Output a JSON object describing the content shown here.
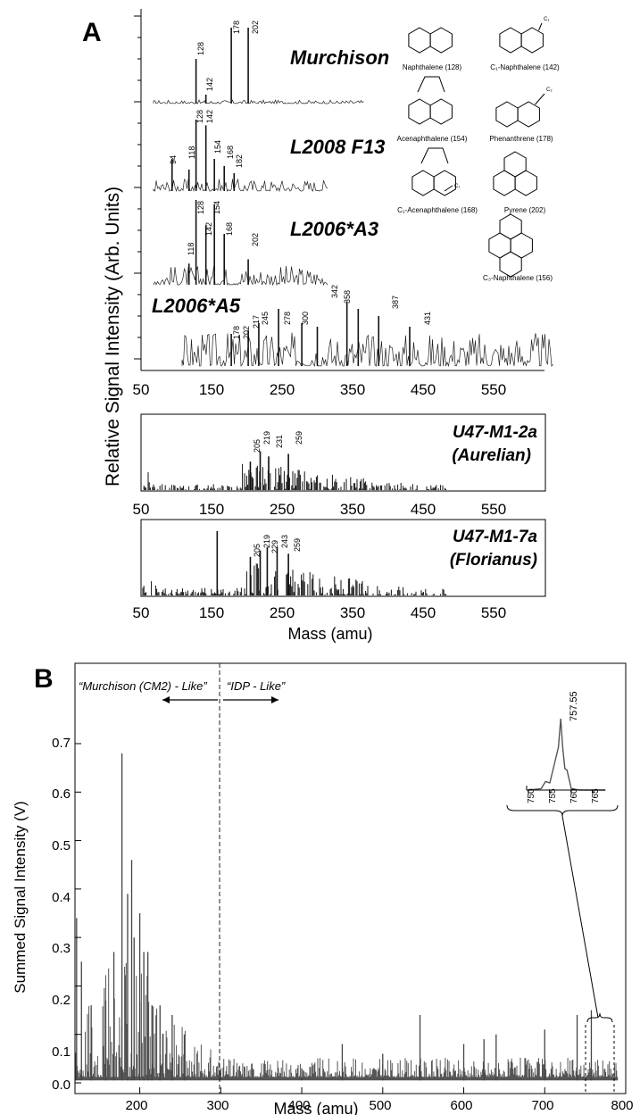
{
  "panel_a": {
    "letter": "A",
    "ylabel": "Relative Signal Intensity (Arb. Units)",
    "xlabel": "Mass (amu)",
    "xticks": [
      "50",
      "150",
      "250",
      "350",
      "450",
      "550"
    ],
    "spectra": [
      {
        "name": "Murchison",
        "peaks": [
          "128",
          "142",
          "178",
          "202"
        ]
      },
      {
        "name": "L2008 F13",
        "peaks": [
          "94",
          "118",
          "128",
          "142",
          "154",
          "168",
          "182"
        ]
      },
      {
        "name": "L2006*A3",
        "peaks": [
          "118",
          "128",
          "142",
          "154",
          "168",
          "202"
        ]
      },
      {
        "name": "L2006*A5",
        "peaks": [
          "178",
          "202",
          "217",
          "245",
          "278",
          "300",
          "342",
          "358",
          "387",
          "431"
        ]
      }
    ],
    "molecules": [
      "Naphthalene (128)",
      "C₁-Naphthalene (142)",
      "Acenaphthalene (154)",
      "Phenanthrene (178)",
      "C₁-Acenaphthalene (168)",
      "Pyrene (202)",
      "C₃-Naphthalene (156)"
    ],
    "molecule_substituents": [
      "C₁",
      "C₂",
      "C₁"
    ],
    "subpanels": [
      {
        "name": "U47-M1-2a",
        "sub": "(Aurelian)",
        "peaks": [
          "205",
          "219",
          "231",
          "259"
        ]
      },
      {
        "name": "U47-M1-7a",
        "sub": "(Florianus)",
        "peaks": [
          "205",
          "219",
          "229",
          "243",
          "259"
        ]
      }
    ]
  },
  "panel_b": {
    "letter": "B",
    "ylabel": "Summed Signal Intensity (V)",
    "xlabel": "Mass (amu)",
    "xticks": [
      "200",
      "300",
      "400",
      "500",
      "600",
      "700",
      "800"
    ],
    "yticks": [
      "0.0",
      "0.1",
      "0.2",
      "0.3",
      "0.4",
      "0.5",
      "0.6",
      "0.7"
    ],
    "annotation_left": "“Murchison (CM2) - Like”",
    "annotation_right": "“IDP - Like”",
    "inset_peak_label": "757.55",
    "inset_xticks": [
      "750",
      "755",
      "760",
      "765"
    ]
  },
  "chart_data": [
    {
      "type": "bar",
      "title": "Murchison",
      "xlabel": "Mass (amu)",
      "ylabel": "Relative Signal Intensity (Arb. Units)",
      "xlim": [
        50,
        620
      ],
      "x": [
        128,
        142,
        178,
        202
      ],
      "values": [
        1.0,
        0.2,
        1.7,
        1.7
      ]
    },
    {
      "type": "bar",
      "title": "L2008 F13",
      "xlim": [
        50,
        620
      ],
      "x": [
        94,
        118,
        128,
        142,
        154,
        168,
        182
      ],
      "values": [
        0.45,
        0.3,
        1.0,
        0.92,
        0.45,
        0.35,
        0.25
      ]
    },
    {
      "type": "bar",
      "title": "L2006*A3",
      "xlim": [
        50,
        620
      ],
      "x": [
        118,
        128,
        142,
        154,
        168,
        202
      ],
      "values": [
        0.25,
        1.0,
        0.7,
        0.95,
        0.6,
        0.3
      ]
    },
    {
      "type": "bar",
      "title": "L2006*A5",
      "xlim": [
        50,
        620
      ],
      "x": [
        178,
        202,
        217,
        245,
        278,
        300,
        342,
        358,
        387,
        431
      ],
      "values": [
        0.45,
        0.5,
        0.6,
        0.8,
        0.6,
        0.55,
        0.9,
        0.8,
        0.7,
        0.55
      ]
    },
    {
      "type": "bar",
      "title": "U47-M1-2a (Aurelian)",
      "xlim": [
        50,
        620
      ],
      "x": [
        205,
        219,
        231,
        259
      ],
      "values": [
        0.55,
        0.75,
        0.65,
        0.7
      ]
    },
    {
      "type": "bar",
      "title": "U47-M1-7a (Florianus)",
      "xlim": [
        50,
        620
      ],
      "x": [
        158,
        205,
        219,
        229,
        243,
        259
      ],
      "values": [
        1.0,
        0.6,
        0.7,
        0.75,
        0.75,
        0.65
      ]
    },
    {
      "type": "line",
      "xlabel": "Mass (amu)",
      "ylabel": "Summed Signal Intensity (V)",
      "xlim": [
        120,
        800
      ],
      "ylim": [
        0.0,
        0.75
      ],
      "x": [
        122,
        128,
        140,
        158,
        168,
        178,
        185,
        190,
        193,
        200,
        205,
        210,
        215,
        225,
        240,
        255,
        300,
        400,
        450,
        500,
        546,
        600,
        625,
        640,
        700,
        740,
        757.55
      ],
      "values": [
        0.34,
        0.25,
        0.16,
        0.17,
        0.27,
        0.68,
        0.39,
        0.46,
        0.3,
        0.35,
        0.27,
        0.27,
        0.16,
        0.16,
        0.14,
        0.1,
        0.03,
        0.03,
        0.08,
        0.06,
        0.14,
        0.08,
        0.09,
        0.1,
        0.11,
        0.14,
        0.15
      ]
    },
    {
      "type": "line",
      "title": "757.55",
      "xlim": [
        749,
        769
      ],
      "x": [
        750,
        753,
        754,
        755,
        756,
        757,
        757.55,
        758,
        758.5,
        759,
        760,
        762,
        768
      ],
      "values": [
        0.0,
        0.02,
        0.12,
        0.1,
        0.35,
        0.6,
        1.0,
        0.6,
        0.3,
        0.28,
        0.02,
        0.0,
        0.0
      ]
    }
  ]
}
